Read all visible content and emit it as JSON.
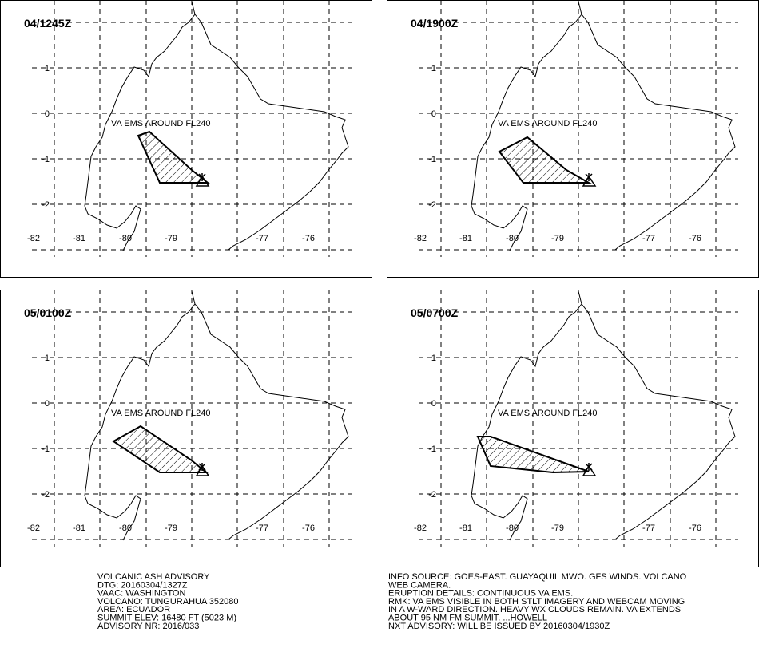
{
  "panels": [
    {
      "time": "04/1245Z",
      "label": "VA EMS AROUND FL240"
    },
    {
      "time": "04/1900Z",
      "label": "VA EMS AROUND FL240"
    },
    {
      "time": "05/0100Z",
      "label": "VA EMS AROUND FL240"
    },
    {
      "time": "05/0700Z",
      "label": "VA EMS AROUND FL240"
    }
  ],
  "lat_labels": [
    "1",
    "0",
    "-1",
    "-2"
  ],
  "lon_labels": [
    "-82",
    "-81",
    "-80",
    "-79",
    "-77",
    "-76"
  ],
  "advisory_left": [
    "VOLCANIC ASH ADVISORY",
    "DTG: 20160304/1327Z",
    "VAAC: WASHINGTON",
    "VOLCANO: TUNGURAHUA 352080",
    "AREA: ECUADOR",
    "SUMMIT ELEV: 16480 FT (5023 M)",
    "ADVISORY NR: 2016/033"
  ],
  "advisory_right": [
    "INFO SOURCE: GOES-EAST. GUAYAQUIL MWO. GFS WINDS. VOLCANO",
    "WEB CAMERA.",
    "ERUPTION DETAILS: CONTINUOUS VA EMS.",
    "RMK: VA EMS VISIBLE IN BOTH STLT IMAGERY AND WEBCAM MOVING",
    "IN A W-WARD DIRECTION. HEAVY WX CLOUDS REMAIN. VA EXTENDS",
    "ABOUT 95 NM FM SUMMIT. ...HOWELL",
    "NXT ADVISORY: WILL BE ISSUED BY 20160304/1930Z"
  ]
}
